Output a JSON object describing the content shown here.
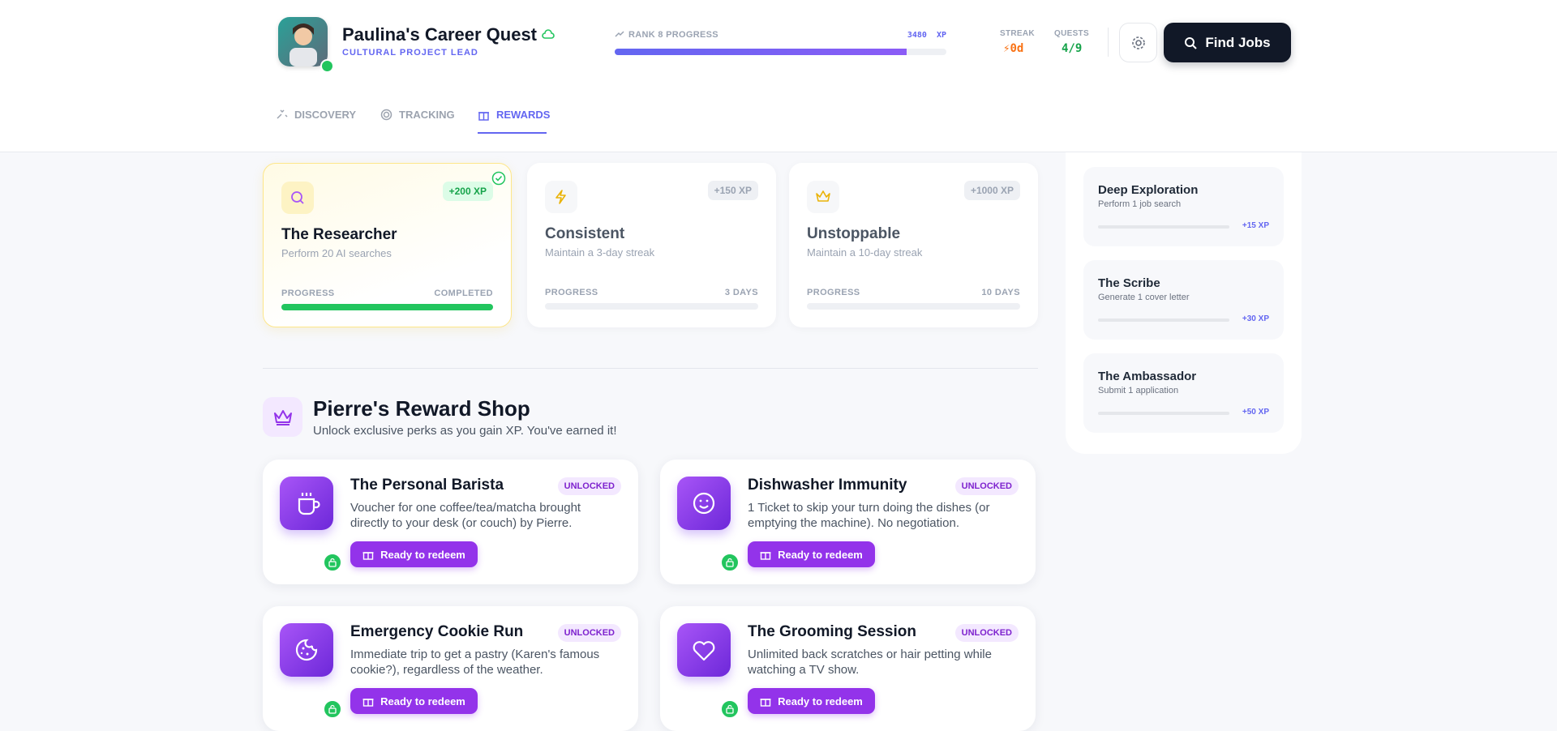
{
  "header": {
    "name": "Paulina's Career Quest",
    "role": "CULTURAL PROJECT LEAD",
    "rank_label": "RANK 8 PROGRESS",
    "xp": "3480",
    "xp_unit": "XP",
    "streak_label": "STREAK",
    "streak_value": "0d",
    "quests_label": "QUESTS",
    "quests_value": "4/9",
    "find_jobs": "Find Jobs"
  },
  "tabs": [
    "DISCOVERY",
    "TRACKING",
    "REWARDS"
  ],
  "achievements": [
    {
      "xp": "+200 XP",
      "title": "The Researcher",
      "desc": "Perform 20 AI searches",
      "progress_label": "PROGRESS",
      "status": "COMPLETED"
    },
    {
      "xp": "+150 XP",
      "title": "Consistent",
      "desc": "Maintain a 3-day streak",
      "progress_label": "PROGRESS",
      "status": "3 DAYS"
    },
    {
      "xp": "+1000 XP",
      "title": "Unstoppable",
      "desc": "Maintain a 10-day streak",
      "progress_label": "PROGRESS",
      "status": "10 DAYS"
    }
  ],
  "shop": {
    "title": "Pierre's Reward Shop",
    "subtitle": "Unlock exclusive perks as you gain XP. You've earned it!",
    "items": [
      {
        "title": "The Personal Barista",
        "badge": "UNLOCKED",
        "desc": "Voucher for one coffee/tea/matcha brought directly to your desk (or couch) by Pierre.",
        "button": "Ready to redeem"
      },
      {
        "title": "Dishwasher Immunity",
        "badge": "UNLOCKED",
        "desc": "1 Ticket to skip your turn doing the dishes (or emptying the machine). No negotiation.",
        "button": "Ready to redeem"
      },
      {
        "title": "Emergency Cookie Run",
        "badge": "UNLOCKED",
        "desc": "Immediate trip to get a pastry (Karen's famous cookie?), regardless of the weather.",
        "button": "Ready to redeem"
      },
      {
        "title": "The Grooming Session",
        "badge": "UNLOCKED",
        "desc": "Unlimited back scratches or hair petting while watching a TV show.",
        "button": "Ready to redeem"
      }
    ]
  },
  "quests": [
    {
      "title": "Deep Exploration",
      "desc": "Perform 1 job search",
      "xp": "+15 XP"
    },
    {
      "title": "The Scribe",
      "desc": "Generate 1 cover letter",
      "xp": "+30 XP"
    },
    {
      "title": "The Ambassador",
      "desc": "Submit 1 application",
      "xp": "+50 XP"
    }
  ]
}
